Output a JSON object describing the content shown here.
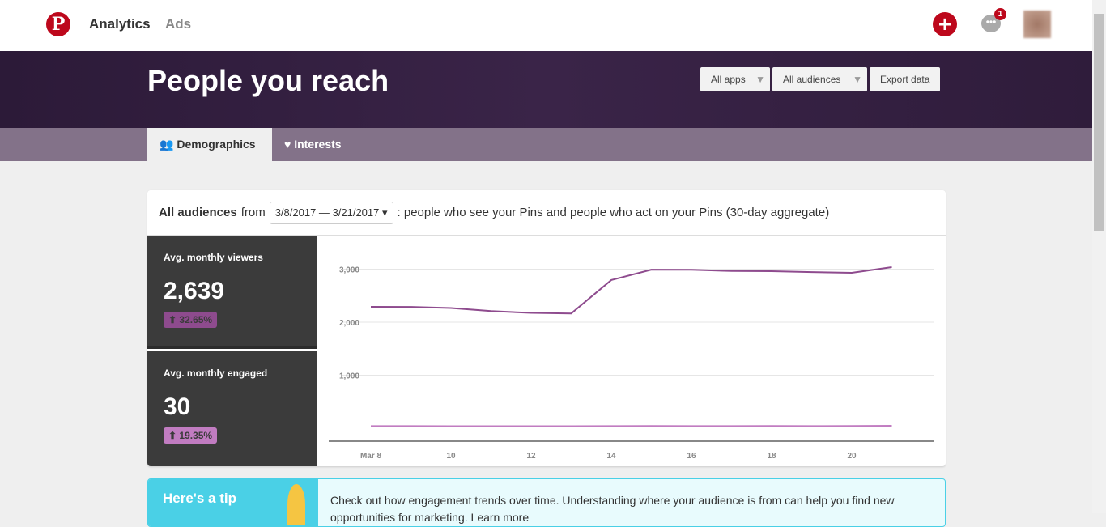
{
  "topbar": {
    "nav": [
      "Analytics",
      "Ads"
    ],
    "notification_count": "1"
  },
  "hero": {
    "title": "People you reach",
    "apps_label": "All apps",
    "audiences_label": "All audiences",
    "export_label": "Export data"
  },
  "tabs": [
    {
      "label": "Demographics",
      "active": true
    },
    {
      "label": "Interests",
      "active": false
    }
  ],
  "card": {
    "audience": "All audiences",
    "from": "from",
    "date_range": "3/8/2017 — 3/21/2017",
    "description": ": people who see your Pins and people who act on your Pins (30-day aggregate)"
  },
  "stats": [
    {
      "label": "Avg. monthly viewers",
      "value": "2,639",
      "change": "32.65%",
      "color": "#8e4b8e"
    },
    {
      "label": "Avg. monthly engaged",
      "value": "30",
      "change": "19.35%",
      "color": "#c17cc1"
    }
  ],
  "chart_data": {
    "type": "line",
    "x": [
      8,
      9,
      10,
      11,
      12,
      13,
      14,
      15,
      16,
      17,
      18,
      19,
      20,
      21
    ],
    "x_tick_labels": [
      "Mar 8",
      "10",
      "12",
      "14",
      "16",
      "18",
      "20"
    ],
    "y_tick_labels": [
      "1,000",
      "2,000",
      "3,000"
    ],
    "ylim": [
      0,
      3200
    ],
    "grid": true,
    "series": [
      {
        "values": [
          2290,
          2288,
          2268,
          2210,
          2175,
          2165,
          2795,
          2990,
          2988,
          2965,
          2962,
          2945,
          2932,
          3038
        ],
        "color": "#8e4b8e"
      },
      {
        "values": [
          40,
          40,
          38,
          38,
          38,
          38,
          40,
          42,
          40,
          40,
          42,
          40,
          42,
          45
        ],
        "color": "#c17cc1"
      }
    ]
  },
  "tip": {
    "title": "Here's a tip",
    "text": "Check out how engagement trends over time. Understanding where your audience is from can help you find new opportunities for marketing. Learn more"
  }
}
